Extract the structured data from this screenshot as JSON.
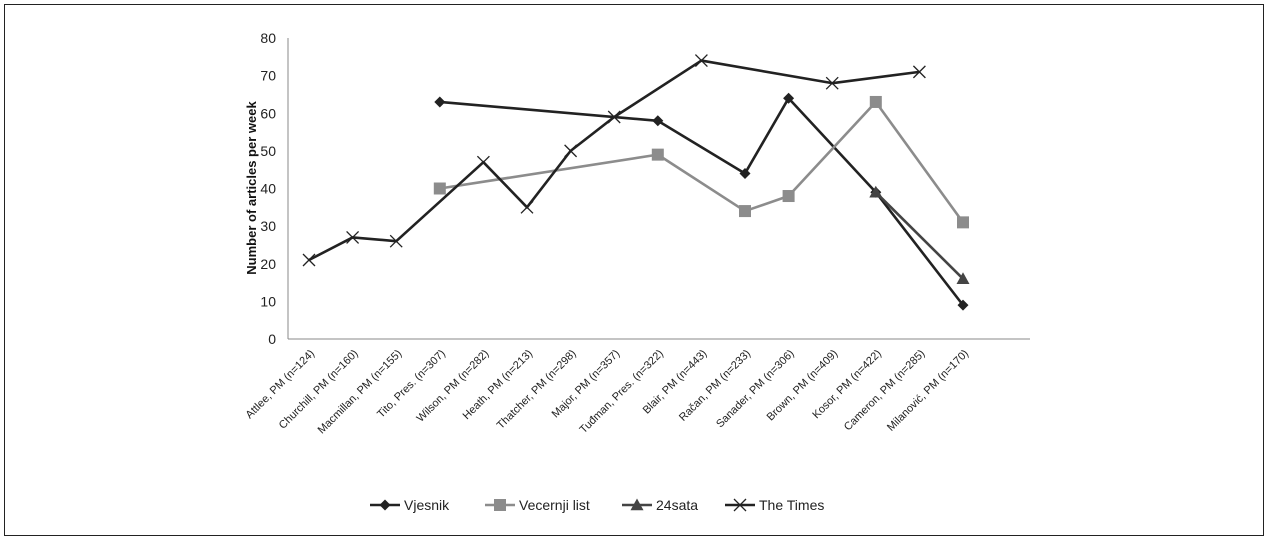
{
  "chart_data": {
    "type": "line",
    "ylabel": "Number of articles per week",
    "xlabel": "",
    "title": "",
    "ylim": [
      0,
      80
    ],
    "yticks": [
      0,
      10,
      20,
      30,
      40,
      50,
      60,
      70,
      80
    ],
    "categories": [
      "Attlee, PM (n=124)",
      "Churchill, PM (n=160)",
      "Macmillan, PM (n=155)",
      "Tito, Pres. (n=307)",
      "Wilson, PM (n=282)",
      "Heath, PM (n=213)",
      "Thatcher, PM (n=298)",
      "Major, PM (n=357)",
      "Tuđman, Pres. (n=322)",
      "Blair, PM (n=443)",
      "Račan, PM (n=233)",
      "Sanader, PM (n=306)",
      "Brown, PM (n=409)",
      "Kosor, PM (n=422)",
      "Cameron, PM (n=285)",
      "Milanović, PM (n=170)"
    ],
    "legend_position": "bottom",
    "series": [
      {
        "name": "Vjesnik",
        "color": "#222222",
        "marker": "diamond",
        "values": [
          null,
          null,
          null,
          63,
          null,
          null,
          null,
          null,
          58,
          null,
          44,
          64,
          null,
          39,
          null,
          9
        ]
      },
      {
        "name": "Vecernji list",
        "color": "#8c8c8c",
        "marker": "square",
        "values": [
          null,
          null,
          null,
          40,
          null,
          null,
          null,
          null,
          49,
          null,
          34,
          38,
          null,
          63,
          null,
          31
        ]
      },
      {
        "name": "24sata",
        "color": "#444444",
        "marker": "triangle",
        "values": [
          null,
          null,
          null,
          null,
          null,
          null,
          null,
          null,
          null,
          null,
          null,
          null,
          null,
          39,
          null,
          16
        ]
      },
      {
        "name": "The Times",
        "color": "#222222",
        "marker": "x",
        "values": [
          21,
          27,
          26,
          null,
          47,
          35,
          50,
          59,
          null,
          74,
          null,
          null,
          68,
          null,
          71,
          null
        ]
      }
    ]
  }
}
